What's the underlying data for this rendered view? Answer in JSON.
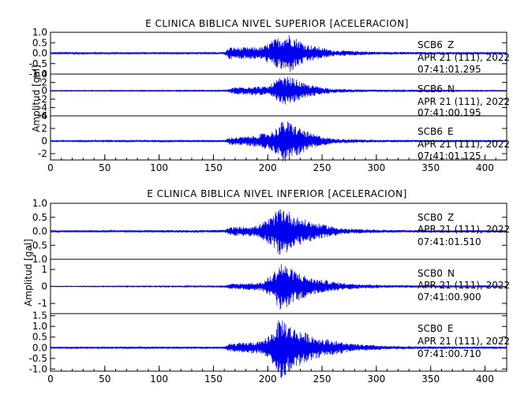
{
  "chart_data": [
    {
      "type": "line",
      "title": "E CLINICA BIBLICA NIVEL SUPERIOR [ACELERACION]",
      "ylabel": "Amplitud [gal]",
      "xlabel": "",
      "xlim": [
        0,
        420
      ],
      "xticks": [
        "0",
        "50",
        "100",
        "150",
        "200",
        "250",
        "300",
        "350",
        "400"
      ],
      "traces": [
        {
          "station": "SCB6",
          "component": "Z",
          "date": "APR 21 (111), 2022",
          "time": "07:41:01.295",
          "yticks": [
            "1.0",
            "0.5",
            "0.0",
            "-0.5",
            "-1.0"
          ],
          "ylim": [
            -1.0,
            1.0
          ],
          "peak": 0.95,
          "envelope": [
            {
              "x": 0,
              "a": 0.04
            },
            {
              "x": 160,
              "a": 0.05
            },
            {
              "x": 165,
              "a": 0.3
            },
            {
              "x": 175,
              "a": 0.28
            },
            {
              "x": 195,
              "a": 0.3
            },
            {
              "x": 210,
              "a": 0.8
            },
            {
              "x": 220,
              "a": 0.95
            },
            {
              "x": 235,
              "a": 0.45
            },
            {
              "x": 260,
              "a": 0.15
            },
            {
              "x": 300,
              "a": 0.07
            },
            {
              "x": 420,
              "a": 0.03
            }
          ]
        },
        {
          "station": "SCB6",
          "component": "N",
          "date": "APR 21 (111), 2022",
          "time": "07:41:00.195",
          "yticks": [
            "4",
            "2",
            "0",
            "-2",
            "-4",
            "-6"
          ],
          "ylim": [
            -6,
            4
          ],
          "peak": 3.5,
          "envelope": [
            {
              "x": 0,
              "a": 0.1
            },
            {
              "x": 160,
              "a": 0.15
            },
            {
              "x": 170,
              "a": 0.9
            },
            {
              "x": 185,
              "a": 1.1
            },
            {
              "x": 200,
              "a": 1.0
            },
            {
              "x": 210,
              "a": 3.0
            },
            {
              "x": 220,
              "a": 3.5
            },
            {
              "x": 235,
              "a": 1.6
            },
            {
              "x": 260,
              "a": 0.5
            },
            {
              "x": 300,
              "a": 0.2
            },
            {
              "x": 420,
              "a": 0.1
            }
          ]
        },
        {
          "station": "SCB6",
          "component": "E",
          "date": "APR 21 (111), 2022",
          "time": "07:41:01.125",
          "yticks": [
            "4",
            "2",
            "0",
            "-2"
          ],
          "ylim": [
            -3,
            4
          ],
          "peak": 3.5,
          "envelope": [
            {
              "x": 0,
              "a": 0.1
            },
            {
              "x": 160,
              "a": 0.15
            },
            {
              "x": 165,
              "a": 0.6
            },
            {
              "x": 185,
              "a": 0.8
            },
            {
              "x": 205,
              "a": 1.6
            },
            {
              "x": 215,
              "a": 3.5
            },
            {
              "x": 225,
              "a": 2.6
            },
            {
              "x": 240,
              "a": 1.2
            },
            {
              "x": 260,
              "a": 0.4
            },
            {
              "x": 300,
              "a": 0.2
            },
            {
              "x": 420,
              "a": 0.1
            }
          ]
        }
      ]
    },
    {
      "type": "line",
      "title": "E CLINICA BIBLICA NIVEL INFERIOR [ACELERACION]",
      "ylabel": "Amplitud [gal]",
      "xlabel": "",
      "xlim": [
        0,
        420
      ],
      "xticks": [
        "0",
        "50",
        "100",
        "150",
        "200",
        "250",
        "300",
        "350",
        "400"
      ],
      "traces": [
        {
          "station": "SCB0",
          "component": "Z",
          "date": "APR 21 (111), 2022",
          "time": "07:41:01.510",
          "yticks": [
            "1.0",
            "0.5",
            "0.0",
            "-0.5",
            "-1.0"
          ],
          "ylim": [
            -1.0,
            1.0
          ],
          "peak": 0.95,
          "envelope": [
            {
              "x": 0,
              "a": 0.03
            },
            {
              "x": 160,
              "a": 0.05
            },
            {
              "x": 165,
              "a": 0.15
            },
            {
              "x": 190,
              "a": 0.2
            },
            {
              "x": 205,
              "a": 0.55
            },
            {
              "x": 212,
              "a": 0.95
            },
            {
              "x": 225,
              "a": 0.55
            },
            {
              "x": 245,
              "a": 0.3
            },
            {
              "x": 270,
              "a": 0.1
            },
            {
              "x": 310,
              "a": 0.05
            },
            {
              "x": 420,
              "a": 0.03
            }
          ]
        },
        {
          "station": "SCB0",
          "component": "N",
          "date": "APR 21 (111), 2022",
          "time": "07:41:00.900",
          "yticks": [
            "1",
            "0",
            "-1"
          ],
          "ylim": [
            -1.6,
            1.6
          ],
          "peak": 1.5,
          "envelope": [
            {
              "x": 0,
              "a": 0.02
            },
            {
              "x": 160,
              "a": 0.04
            },
            {
              "x": 165,
              "a": 0.15
            },
            {
              "x": 195,
              "a": 0.25
            },
            {
              "x": 205,
              "a": 0.8
            },
            {
              "x": 212,
              "a": 1.5
            },
            {
              "x": 220,
              "a": 1.1
            },
            {
              "x": 240,
              "a": 0.5
            },
            {
              "x": 270,
              "a": 0.2
            },
            {
              "x": 310,
              "a": 0.08
            },
            {
              "x": 420,
              "a": 0.03
            }
          ]
        },
        {
          "station": "SCB0",
          "component": "E",
          "date": "APR 21 (111), 2022",
          "time": "07:41:00.710",
          "yticks": [
            "1.5",
            "1.0",
            "0.5",
            "0.0",
            "-0.5",
            "-1.0"
          ],
          "ylim": [
            -1.1,
            1.6
          ],
          "peak": 1.5,
          "envelope": [
            {
              "x": 0,
              "a": 0.03
            },
            {
              "x": 160,
              "a": 0.05
            },
            {
              "x": 165,
              "a": 0.2
            },
            {
              "x": 195,
              "a": 0.3
            },
            {
              "x": 205,
              "a": 0.8
            },
            {
              "x": 212,
              "a": 1.5
            },
            {
              "x": 222,
              "a": 1.0
            },
            {
              "x": 245,
              "a": 0.5
            },
            {
              "x": 275,
              "a": 0.2
            },
            {
              "x": 310,
              "a": 0.08
            },
            {
              "x": 420,
              "a": 0.03
            }
          ]
        }
      ]
    }
  ],
  "colors": {
    "trace": "#0000ee",
    "axis": "#000000",
    "zero_line": "#000000"
  }
}
